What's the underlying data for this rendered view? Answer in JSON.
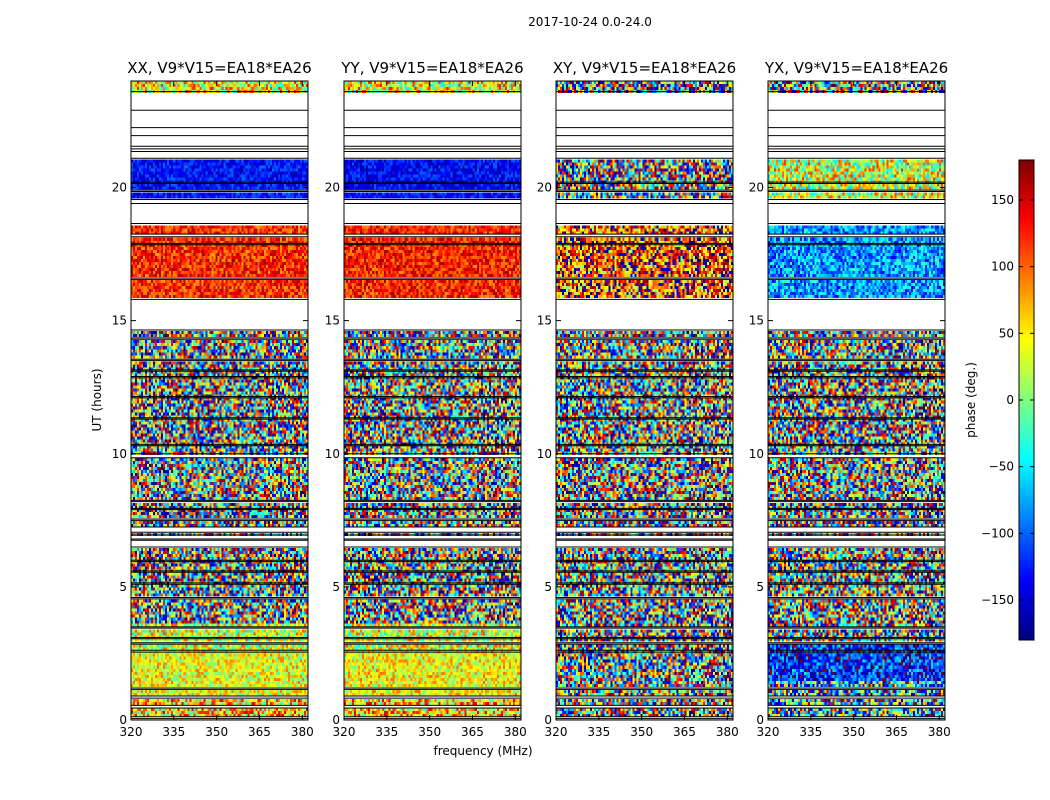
{
  "chart_data": {
    "type": "heatmap",
    "title": "2017-10-24 0.0-24.0",
    "xlabel": "frequency (MHz)",
    "ylabel": "UT (hours)",
    "xlim": [
      320,
      382
    ],
    "ylim": [
      0,
      24
    ],
    "x_ticks": [
      320,
      335,
      350,
      365,
      380
    ],
    "y_ticks": [
      0,
      5,
      10,
      15,
      20
    ],
    "colorbar": {
      "label": "phase (deg.)",
      "range": [
        -180,
        180
      ],
      "ticks": [
        150,
        100,
        50,
        0,
        -50,
        -100,
        -150
      ],
      "tick_labels": [
        "150",
        "100",
        "50",
        "0",
        "−50",
        "−100",
        "−150"
      ],
      "colormap": "jet",
      "colors": [
        "#00007f",
        "#0000ff",
        "#007fff",
        "#00ffff",
        "#7fff7f",
        "#ffff00",
        "#ff7f00",
        "#ff0000",
        "#7f0000"
      ]
    },
    "flagged_time_ranges_hours": [
      [
        0.05,
        0.12
      ],
      [
        0.45,
        0.55
      ],
      [
        0.82,
        0.9
      ],
      [
        1.15,
        1.2
      ],
      [
        2.55,
        2.62
      ],
      [
        2.85,
        2.9
      ],
      [
        3.05,
        3.1
      ],
      [
        3.45,
        3.5
      ],
      [
        4.55,
        4.6
      ],
      [
        5.1,
        5.15
      ],
      [
        5.55,
        5.6
      ],
      [
        5.95,
        6.0
      ],
      [
        6.5,
        6.75
      ],
      [
        6.8,
        6.95
      ],
      [
        7.05,
        7.25
      ],
      [
        7.5,
        7.55
      ],
      [
        7.9,
        7.95
      ],
      [
        8.2,
        8.25
      ],
      [
        9.85,
        10.0
      ],
      [
        10.3,
        10.35
      ],
      [
        11.3,
        11.35
      ],
      [
        12.1,
        12.15
      ],
      [
        12.85,
        12.9
      ],
      [
        13.1,
        13.15
      ],
      [
        13.5,
        13.55
      ],
      [
        14.3,
        14.35
      ],
      [
        14.65,
        15.8
      ],
      [
        16.55,
        16.6
      ],
      [
        17.85,
        17.9
      ],
      [
        18.15,
        18.25
      ],
      [
        18.65,
        19.4
      ],
      [
        19.4,
        19.55
      ],
      [
        19.85,
        19.9
      ],
      [
        20.15,
        20.2
      ],
      [
        21.1,
        21.35
      ],
      [
        21.45,
        21.55
      ],
      [
        21.95,
        22.25
      ],
      [
        22.9,
        23.6
      ]
    ],
    "panels": [
      {
        "title": "XX, V9*V15=EA18*EA26",
        "bands": [
          {
            "t0": 0.0,
            "t1": 0.9,
            "phase": 60,
            "spread": 90
          },
          {
            "t0": 0.9,
            "t1": 2.6,
            "phase": 40,
            "spread": 55
          },
          {
            "t0": 2.6,
            "t1": 3.6,
            "phase": 30,
            "spread": 80
          },
          {
            "t0": 3.6,
            "t1": 14.6,
            "phase": 0,
            "spread": 180
          },
          {
            "t0": 15.8,
            "t1": 18.6,
            "phase": 120,
            "spread": 45
          },
          {
            "t0": 19.5,
            "t1": 21.1,
            "phase": -130,
            "spread": 35
          },
          {
            "t0": 23.6,
            "t1": 24.0,
            "phase": 40,
            "spread": 90
          }
        ]
      },
      {
        "title": "YY, V9*V15=EA18*EA26",
        "bands": [
          {
            "t0": 0.0,
            "t1": 0.9,
            "phase": 60,
            "spread": 90
          },
          {
            "t0": 0.9,
            "t1": 2.6,
            "phase": 45,
            "spread": 55
          },
          {
            "t0": 2.6,
            "t1": 3.6,
            "phase": 30,
            "spread": 80
          },
          {
            "t0": 3.6,
            "t1": 14.6,
            "phase": 0,
            "spread": 180
          },
          {
            "t0": 15.8,
            "t1": 18.6,
            "phase": 125,
            "spread": 45
          },
          {
            "t0": 19.5,
            "t1": 21.1,
            "phase": -135,
            "spread": 35
          },
          {
            "t0": 23.6,
            "t1": 24.0,
            "phase": 40,
            "spread": 90
          }
        ]
      },
      {
        "title": "XY, V9*V15=EA18*EA26",
        "bands": [
          {
            "t0": 0.0,
            "t1": 14.6,
            "phase": 0,
            "spread": 180
          },
          {
            "t0": 15.8,
            "t1": 18.6,
            "phase": 110,
            "spread": 110
          },
          {
            "t0": 19.5,
            "t1": 21.1,
            "phase": 0,
            "spread": 180
          },
          {
            "t0": 23.6,
            "t1": 24.0,
            "phase": 0,
            "spread": 180
          }
        ]
      },
      {
        "title": "YX, V9*V15=EA18*EA26",
        "bands": [
          {
            "t0": 0.0,
            "t1": 1.5,
            "phase": -60,
            "spread": 150
          },
          {
            "t0": 1.5,
            "t1": 3.0,
            "phase": -120,
            "spread": 70
          },
          {
            "t0": 3.0,
            "t1": 14.6,
            "phase": 0,
            "spread": 180
          },
          {
            "t0": 15.8,
            "t1": 18.6,
            "phase": -80,
            "spread": 60
          },
          {
            "t0": 19.5,
            "t1": 21.1,
            "phase": 30,
            "spread": 90
          },
          {
            "t0": 23.6,
            "t1": 24.0,
            "phase": 0,
            "spread": 180
          }
        ]
      }
    ]
  }
}
